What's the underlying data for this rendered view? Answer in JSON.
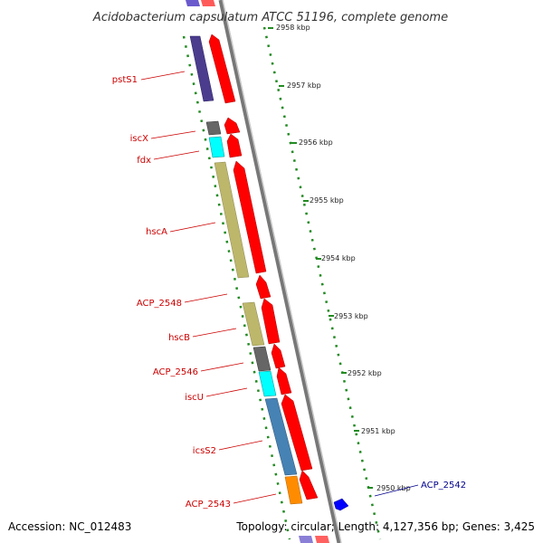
{
  "title": "Acidobacterium capsulatum ATCC 51196, complete genome",
  "accession": "Accession: NC_012483",
  "topology": "Topology: circular; Length: 4,127,356 bp; Genes: 3,425",
  "colors": {
    "forward_strand": "#ff0000",
    "reverse_strand": "#0000ff",
    "genome_line": "#888888",
    "scale_ticks": "#228b22",
    "label_forward": "#cc0000",
    "label_reverse": "#00008b",
    "pstS1": "#4b3c8e",
    "iscX": "#666666",
    "fdx": "#00ffff",
    "hscA": "#bdb76b",
    "hscB": "#bdb76b",
    "ACP_2546": "#666666",
    "iscU": "#00ffff",
    "icsS2": "#4682b4",
    "ACP_2543": "#ff8c00"
  },
  "scale": {
    "ticks": [
      "2958 kbp",
      "2957 kbp",
      "2956 kbp",
      "2955 kbp",
      "2954 kbp",
      "2953 kbp",
      "2952 kbp",
      "2951 kbp",
      "2950 kbp"
    ]
  },
  "genes": [
    {
      "name": "pstS1",
      "strand": "reverse",
      "color": "#4b3c8e"
    },
    {
      "name": "iscX",
      "strand": "reverse",
      "color": "#666666"
    },
    {
      "name": "fdx",
      "strand": "reverse",
      "color": "#00ffff"
    },
    {
      "name": "hscA",
      "strand": "reverse",
      "color": "#bdb76b"
    },
    {
      "name": "ACP_2548",
      "strand": "reverse",
      "color": "#ff0000"
    },
    {
      "name": "hscB",
      "strand": "reverse",
      "color": "#bdb76b"
    },
    {
      "name": "ACP_2546",
      "strand": "reverse",
      "color": "#666666"
    },
    {
      "name": "iscU",
      "strand": "reverse",
      "color": "#00ffff"
    },
    {
      "name": "icsS2",
      "strand": "reverse",
      "color": "#4682b4"
    },
    {
      "name": "ACP_2543",
      "strand": "reverse",
      "color": "#ff8c00"
    },
    {
      "name": "ACP_2542",
      "strand": "forward",
      "color": "#0000ff"
    }
  ]
}
